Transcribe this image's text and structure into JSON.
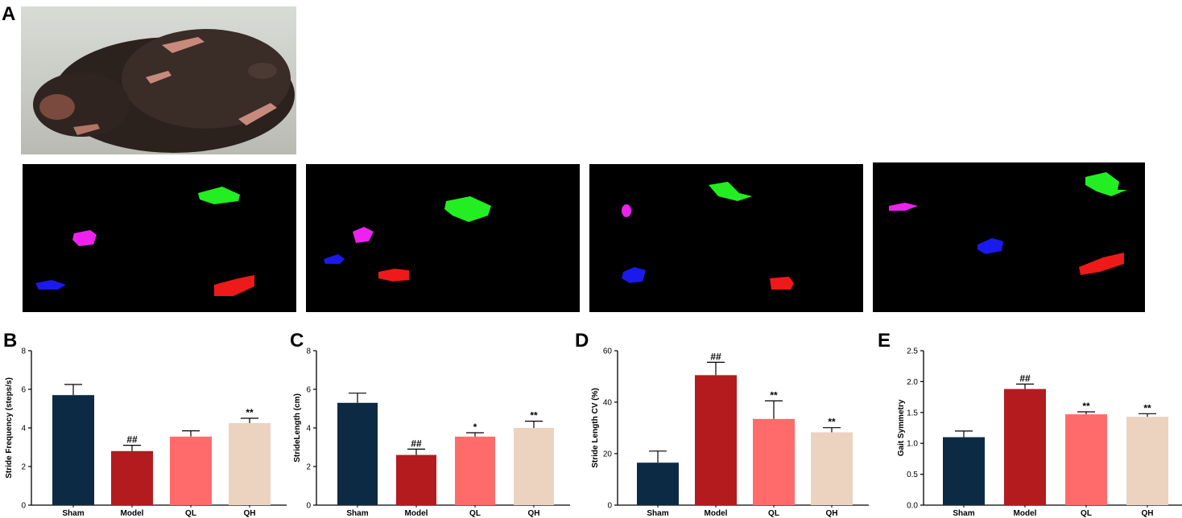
{
  "panel_letters": [
    "A",
    "B",
    "C",
    "D",
    "E"
  ],
  "colors": {
    "Sham": "#0d2a45",
    "Model": "#b31b1f",
    "QL": "#ff6b6b",
    "QH": "#ecd3bf",
    "footprint_green": "#22ee22",
    "footprint_magenta": "#ee22ee",
    "footprint_blue": "#1a1aee",
    "footprint_red": "#ee1a1a"
  },
  "chart_data": [
    {
      "type": "bar",
      "panel": "B",
      "categories": [
        "Sham",
        "Model",
        "QL",
        "QH"
      ],
      "values": [
        5.7,
        2.8,
        3.55,
        4.25
      ],
      "errors": [
        0.55,
        0.3,
        0.3,
        0.25
      ],
      "annotations": [
        "",
        "##",
        "",
        "**"
      ],
      "ylabel": "Stride Frequency (steps/s)",
      "ylim": [
        0,
        8
      ],
      "yticks": [
        "0",
        "2",
        "4",
        "6",
        "8"
      ]
    },
    {
      "type": "bar",
      "panel": "C",
      "categories": [
        "Sham",
        "Model",
        "QL",
        "QH"
      ],
      "values": [
        5.3,
        2.6,
        3.55,
        4.0
      ],
      "errors": [
        0.5,
        0.3,
        0.2,
        0.35
      ],
      "annotations": [
        "",
        "##",
        "*",
        "**"
      ],
      "ylabel": "StrideLength (cm)",
      "ylim": [
        0,
        8
      ],
      "yticks": [
        "0",
        "2",
        "4",
        "6",
        "8"
      ]
    },
    {
      "type": "bar",
      "panel": "D",
      "categories": [
        "Sham",
        "Model",
        "QL",
        "QH"
      ],
      "values": [
        16.5,
        50.5,
        33.5,
        28.3
      ],
      "errors": [
        4.5,
        5.0,
        7.0,
        1.8
      ],
      "annotations": [
        "",
        "##",
        "**",
        "**"
      ],
      "ylabel": "Stride Length CV (%)",
      "ylim": [
        0,
        60
      ],
      "yticks": [
        "0",
        "20",
        "40",
        "60"
      ]
    },
    {
      "type": "bar",
      "panel": "E",
      "categories": [
        "Sham",
        "Model",
        "QL",
        "QH"
      ],
      "values": [
        1.1,
        1.88,
        1.47,
        1.43
      ],
      "errors": [
        0.1,
        0.08,
        0.04,
        0.05
      ],
      "annotations": [
        "",
        "##",
        "**",
        "**"
      ],
      "ylabel": "Gait Symmetry",
      "ylim": [
        0,
        2.5
      ],
      "yticks": [
        "0.0",
        "0.5",
        "1.0",
        "1.5",
        "2.0",
        "2.5"
      ]
    }
  ]
}
